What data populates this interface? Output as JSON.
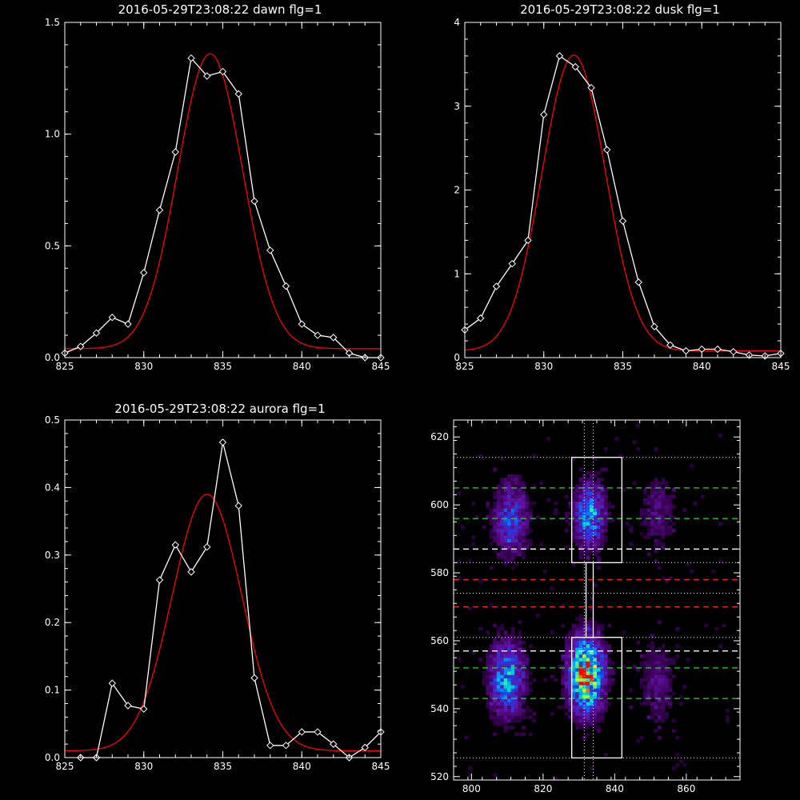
{
  "colors": {
    "background": "#000000",
    "axes": "#ffffff",
    "observed": "#ffffff",
    "fit": "#ff0000"
  },
  "chart_data": [
    {
      "type": "line",
      "title": "2016-05-29T23:08:22 dawn flg=1",
      "xlim": [
        825,
        845
      ],
      "ylim": [
        0,
        1.5
      ],
      "xticks": [
        "825",
        "830",
        "835",
        "840",
        "845"
      ],
      "yticks": [
        "0.0",
        "0.5",
        "1.0",
        "1.5"
      ],
      "ytick_values": [
        0,
        0.5,
        1.0,
        1.5
      ],
      "series": [
        {
          "x": [
            825,
            826,
            827,
            828,
            829,
            830,
            831,
            832,
            833,
            834,
            835,
            836,
            837,
            838,
            839,
            840,
            841,
            842,
            843,
            844,
            845
          ],
          "values": [
            0.02,
            0.05,
            0.11,
            0.18,
            0.15,
            0.38,
            0.66,
            0.92,
            1.34,
            1.26,
            1.28,
            1.18,
            0.7,
            0.48,
            0.32,
            0.15,
            0.1,
            0.09,
            0.02,
            -0.02,
            0.0
          ]
        },
        {
          "fit": {
            "amplitude": 1.32,
            "center": 834.2,
            "sigma": 2.05,
            "offset": 0.04
          }
        }
      ]
    },
    {
      "type": "line",
      "title": "2016-05-29T23:08:22 dusk flg=1",
      "xlim": [
        825,
        845
      ],
      "ylim": [
        0,
        4
      ],
      "xticks": [
        "825",
        "830",
        "835",
        "840",
        "845"
      ],
      "yticks": [
        "0",
        "1",
        "2",
        "3",
        "4"
      ],
      "ytick_values": [
        0,
        1,
        2,
        3,
        4
      ],
      "series": [
        {
          "x": [
            825,
            826,
            827,
            828,
            829,
            830,
            831,
            832,
            833,
            834,
            835,
            836,
            837,
            838,
            839,
            840,
            841,
            842,
            843,
            844,
            845
          ],
          "values": [
            0.33,
            0.47,
            0.85,
            1.12,
            1.4,
            2.9,
            3.6,
            3.47,
            3.22,
            2.48,
            1.63,
            0.9,
            0.37,
            0.15,
            0.08,
            0.1,
            0.1,
            0.07,
            0.03,
            0.02,
            0.05
          ]
        },
        {
          "fit": {
            "amplitude": 3.53,
            "center": 831.9,
            "sigma": 2.0,
            "offset": 0.08
          }
        }
      ]
    },
    {
      "type": "line",
      "title": "2016-05-29T23:08:22 aurora flg=1",
      "xlim": [
        825,
        845
      ],
      "ylim": [
        0,
        0.5
      ],
      "xticks": [
        "825",
        "830",
        "835",
        "840",
        "845"
      ],
      "yticks": [
        "0.0",
        "0.1",
        "0.2",
        "0.3",
        "0.4",
        "0.5"
      ],
      "ytick_values": [
        0,
        0.1,
        0.2,
        0.3,
        0.4,
        0.5
      ],
      "series": [
        {
          "x": [
            826,
            827,
            828,
            829,
            830,
            831,
            832,
            833,
            834,
            835,
            836,
            837,
            838,
            839,
            840,
            841,
            842,
            843,
            844,
            845
          ],
          "values": [
            -0.005,
            -0.005,
            0.11,
            0.077,
            0.072,
            0.263,
            0.315,
            0.275,
            0.312,
            0.467,
            0.373,
            0.118,
            0.018,
            0.018,
            0.038,
            0.038,
            0.02,
            -0.005,
            0.015,
            0.038
          ]
        },
        {
          "fit": {
            "amplitude": 0.38,
            "center": 834.0,
            "sigma": 2.2,
            "offset": 0.01
          }
        }
      ]
    },
    {
      "type": "heatmap",
      "xlim": [
        795,
        875
      ],
      "ylim": [
        519,
        625
      ],
      "xticks": [
        "800",
        "820",
        "840",
        "860"
      ],
      "xtick_values": [
        800,
        820,
        840,
        860
      ],
      "yticks": [
        "520",
        "540",
        "560",
        "580",
        "600",
        "620"
      ],
      "ytick_values": [
        520,
        540,
        560,
        580,
        600,
        620
      ],
      "blobs": [
        {
          "x": 810,
          "y": 549,
          "sx": 3.5,
          "sy": 8,
          "peak": 0.62
        },
        {
          "x": 811,
          "y": 596,
          "sx": 3.5,
          "sy": 8,
          "peak": 0.45
        },
        {
          "x": 832,
          "y": 550,
          "sx": 3.5,
          "sy": 8,
          "peak": 1.0
        },
        {
          "x": 833,
          "y": 597,
          "sx": 3.0,
          "sy": 7,
          "peak": 0.62
        },
        {
          "x": 852,
          "y": 548,
          "sx": 4,
          "sy": 9,
          "peak": 0.22
        },
        {
          "x": 852,
          "y": 598,
          "sx": 4,
          "sy": 8,
          "peak": 0.22
        }
      ],
      "green_lines": [
        543,
        552,
        596,
        605
      ],
      "red_lines": [
        570,
        578
      ],
      "white_dashed_lines": [
        557,
        587
      ],
      "dotted_lines": [
        525.5,
        561,
        574,
        583,
        614
      ],
      "vertical_dotted": [
        831.5,
        834
      ],
      "boxes": [
        {
          "x0": 828,
          "x1": 842,
          "y0": 525.5,
          "y1": 561
        },
        {
          "x0": 828,
          "x1": 842,
          "y0": 583,
          "y1": 614
        },
        {
          "x0": 832,
          "x1": 834,
          "y0": 561,
          "y1": 583
        }
      ]
    }
  ]
}
